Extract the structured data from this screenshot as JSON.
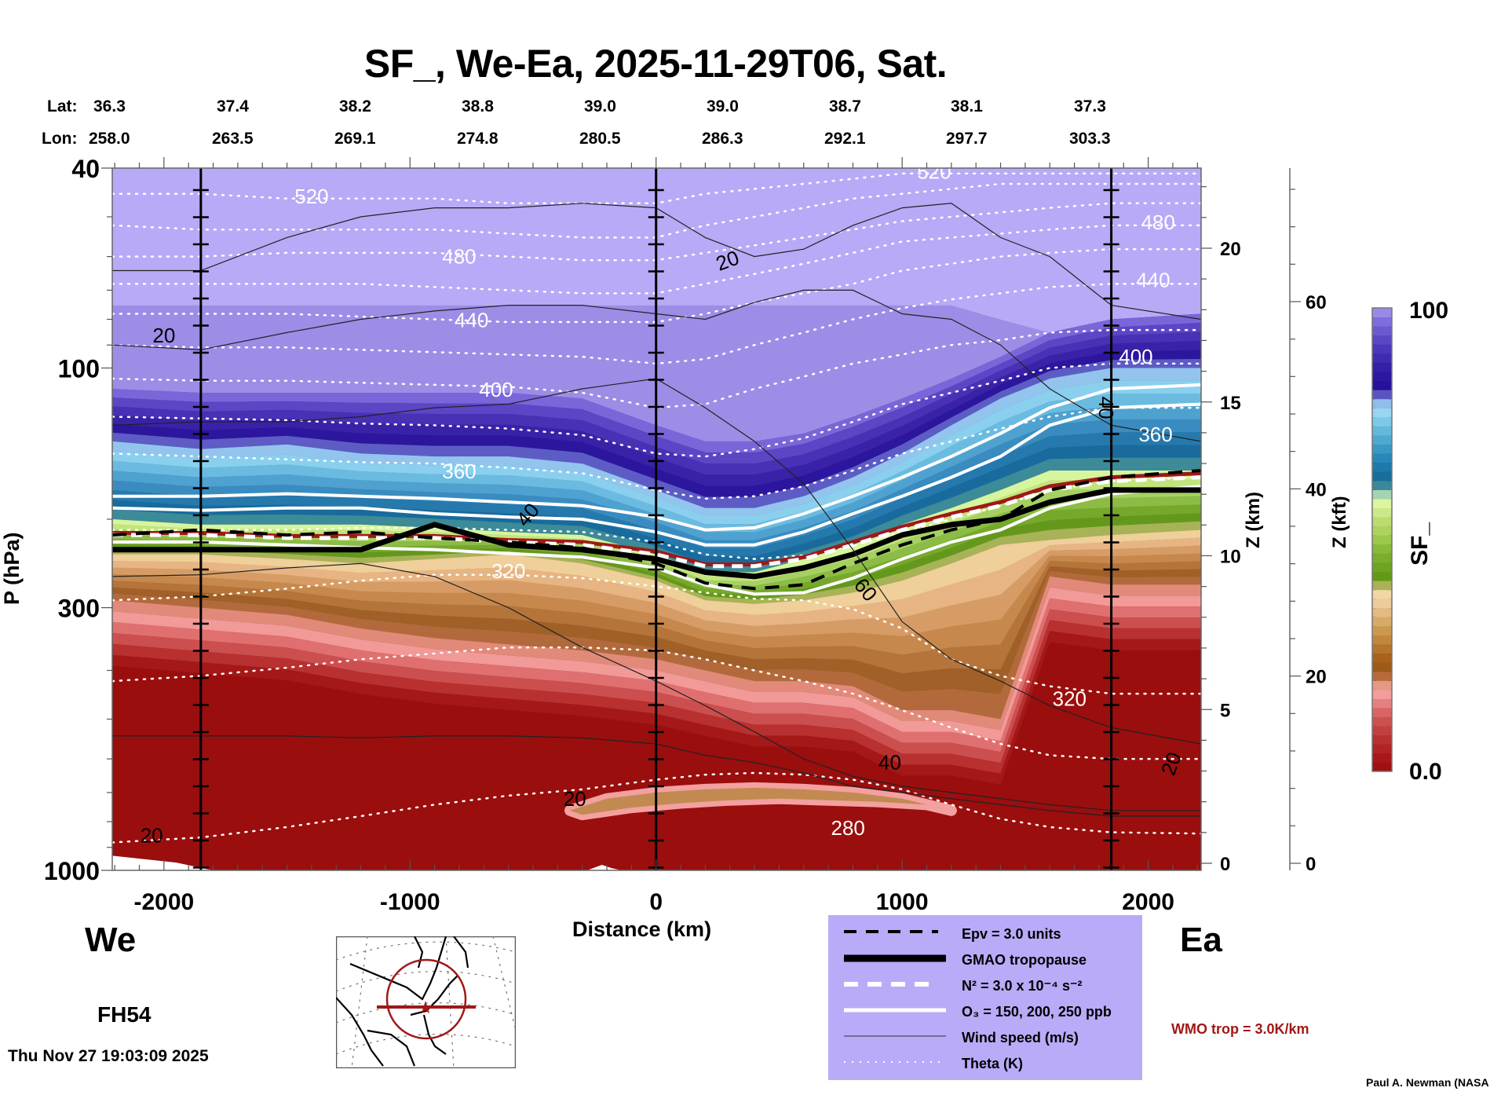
{
  "title": "SF_, We-Ea, 2025-11-29T06, Sat.",
  "lat_label": "Lat:",
  "lon_label": "Lon:",
  "lats": [
    "36.3",
    "37.4",
    "38.2",
    "38.8",
    "39.0",
    "39.0",
    "38.7",
    "38.1",
    "37.3"
  ],
  "lons": [
    "258.0",
    "263.5",
    "269.1",
    "274.8",
    "280.5",
    "286.3",
    "292.1",
    "297.7",
    "303.3"
  ],
  "west_label": "We",
  "east_label": "Ea",
  "forecast_hour": "FH54",
  "timestamp": "Thu Nov 27 19:03:09 2025",
  "credit": "Paul A. Newman (NASA",
  "wmo_label": "WMO trop = 3.0K/km",
  "colors": {
    "wmo_trop": "#a01818",
    "legend_bg": "#b9abf7",
    "map_track": "#a01818"
  },
  "legend": [
    {
      "name": "epv",
      "label": "Epv = 3.0 units",
      "style": "black-dashed"
    },
    {
      "name": "gmao-tropopause",
      "label": "GMAO tropopause",
      "style": "black-thick"
    },
    {
      "name": "n2",
      "label": "N² = 3.0 x 10⁻⁴ s⁻²",
      "style": "white-dashed"
    },
    {
      "name": "ozone",
      "label": "O₃ = 150, 200, 250 ppb",
      "style": "white-solid"
    },
    {
      "name": "wind-speed",
      "label": "Wind speed (m/s)",
      "style": "thin-black"
    },
    {
      "name": "theta",
      "label": "Theta (K)",
      "style": "white-dotted"
    }
  ],
  "chart_data": {
    "type": "heatmap",
    "title": "SF_, We-Ea, 2025-11-29T06, Sat.",
    "xlabel": "Distance (km)",
    "ylabel": "P (hPa)",
    "y2label": "Z (km)",
    "y3label": "Z (kft)",
    "colorbar_label": "SF_",
    "colorbar_range": [
      0.0,
      100
    ],
    "colorbar_tick_labels": [
      "0.0",
      "100"
    ],
    "xlim": [
      -2210,
      2215
    ],
    "ylim_hpa": [
      1000,
      40
    ],
    "y_scale": "log",
    "x_ticks": [
      -2000,
      -1000,
      0,
      1000,
      2000
    ],
    "x_tick_labels": [
      "-2000",
      "-1000",
      "0",
      "1000",
      "2000"
    ],
    "y_ticks": [
      40,
      100,
      300,
      1000
    ],
    "y_tick_labels": [
      "40",
      "100",
      "300",
      "1000"
    ],
    "zkm_ticks": [
      0,
      5,
      10,
      15,
      20
    ],
    "zkm_tick_labels": [
      "0",
      "5",
      "10",
      "15",
      "20"
    ],
    "zkft_ticks": [
      0,
      20,
      40,
      60
    ],
    "zkft_tick_labels": [
      "0",
      "20",
      "40",
      "60"
    ],
    "vertical_markers_km": [
      -1850,
      0,
      1850
    ],
    "x_km": [
      -2210,
      -1850,
      -1500,
      -1200,
      -900,
      -600,
      -300,
      0,
      200,
      400,
      600,
      800,
      1000,
      1200,
      1400,
      1600,
      1850,
      2215
    ],
    "boundaries_hpa": {
      "stratosphere_light_top": [
        75,
        75,
        75,
        75,
        75,
        75,
        75,
        75,
        75,
        75,
        75,
        75,
        75,
        75,
        80,
        85,
        90,
        90
      ],
      "dark_purple_top": [
        110,
        112,
        112,
        112,
        112,
        112,
        115,
        130,
        140,
        140,
        135,
        125,
        115,
        105,
        95,
        85,
        80,
        78
      ],
      "blue_top": [
        140,
        145,
        142,
        148,
        150,
        150,
        155,
        175,
        190,
        190,
        180,
        165,
        148,
        130,
        115,
        105,
        100,
        100
      ],
      "green_top": [
        200,
        205,
        205,
        205,
        208,
        212,
        215,
        235,
        255,
        255,
        240,
        225,
        205,
        190,
        175,
        160,
        160,
        160
      ],
      "brown_top": [
        235,
        235,
        240,
        245,
        240,
        235,
        245,
        265,
        290,
        295,
        290,
        280,
        265,
        245,
        225,
        220,
        215,
        210
      ],
      "red_top": [
        290,
        300,
        310,
        330,
        345,
        355,
        365,
        380,
        400,
        420,
        420,
        430,
        480,
        480,
        500,
        260,
        270,
        270
      ]
    },
    "epv_3pvu_hpa": [
      215,
      210,
      215,
      212,
      218,
      222,
      228,
      245,
      268,
      275,
      270,
      245,
      225,
      210,
      200,
      175,
      165,
      160
    ],
    "gmao_tropopause_hpa": [
      230,
      230,
      230,
      230,
      205,
      225,
      230,
      240,
      255,
      260,
      250,
      235,
      215,
      205,
      200,
      185,
      175,
      175
    ],
    "n2_tropopause_hpa": [
      215,
      215,
      218,
      218,
      218,
      222,
      225,
      235,
      248,
      248,
      240,
      225,
      210,
      198,
      188,
      175,
      168,
      165
    ],
    "wmo_tropopause_hpa": [
      213,
      213,
      216,
      216,
      216,
      220,
      222,
      232,
      246,
      246,
      238,
      222,
      207,
      195,
      185,
      172,
      165,
      162
    ],
    "ozone_ppb_lines_hpa": {
      "150": [
        222,
        222,
        225,
        228,
        230,
        234,
        238,
        250,
        270,
        282,
        280,
        262,
        240,
        222,
        210,
        190,
        178,
        172
      ],
      "200": [
        190,
        192,
        190,
        190,
        195,
        198,
        200,
        212,
        225,
        225,
        212,
        195,
        180,
        165,
        150,
        130,
        120,
        118
      ],
      "250": [
        180,
        180,
        178,
        180,
        182,
        185,
        188,
        198,
        210,
        208,
        195,
        180,
        165,
        150,
        135,
        120,
        110,
        108
      ]
    },
    "theta_K_lines": [
      {
        "label": "520",
        "hpa": [
          45,
          45,
          46,
          46,
          46,
          47,
          47,
          47,
          45,
          44,
          43,
          42,
          41,
          41,
          41,
          41,
          41,
          41
        ]
      },
      {
        "label": "480",
        "hpa": [
          60,
          60,
          59,
          59,
          59,
          60,
          61,
          61,
          59,
          57,
          55,
          53,
          51,
          50,
          49,
          48,
          47,
          47
        ]
      },
      {
        "label": "440",
        "hpa": [
          78,
          78,
          78,
          79,
          80,
          81,
          81,
          81,
          78,
          74,
          71,
          68,
          64,
          62,
          60,
          59,
          58,
          58
        ]
      },
      {
        "label": "400",
        "hpa": [
          105,
          106,
          106,
          107,
          108,
          109,
          112,
          120,
          118,
          110,
          104,
          98,
          94,
          90,
          88,
          85,
          84,
          84
        ]
      },
      {
        "label": "360",
        "hpa": [
          148,
          150,
          152,
          154,
          155,
          158,
          162,
          175,
          182,
          180,
          172,
          160,
          148,
          140,
          132,
          125,
          120,
          120
        ]
      },
      {
        "label": "320",
        "hpa": [
          290,
          285,
          275,
          265,
          258,
          258,
          262,
          272,
          280,
          288,
          290,
          302,
          330,
          380,
          410,
          430,
          445,
          445
        ]
      },
      {
        "label": "280",
        "hpa": [
          880,
          860,
          820,
          780,
          740,
          710,
          690,
          660,
          645,
          640,
          645,
          660,
          690,
          740,
          790,
          820,
          840,
          845
        ]
      }
    ],
    "wind_speed_contour_labels": [
      "20",
      "20",
      "20",
      "20",
      "40",
      "40",
      "40",
      "60",
      "20"
    ],
    "subplot_map": {
      "label": "track map over North America",
      "center": "star marker",
      "track": "horizontal red line with range circle"
    }
  }
}
